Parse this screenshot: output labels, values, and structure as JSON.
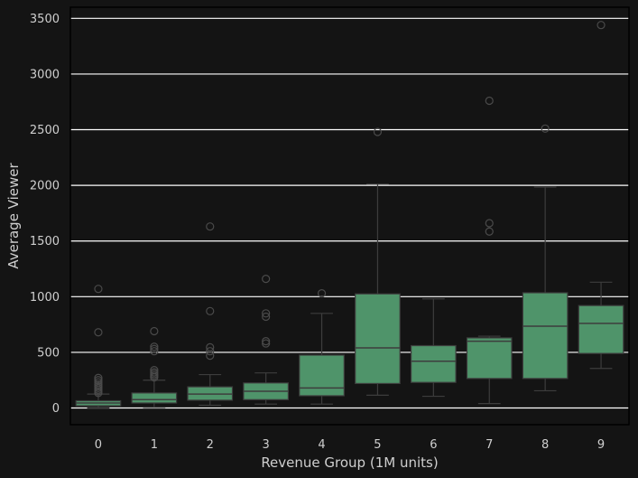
{
  "chart_data": {
    "type": "boxplot",
    "title": "",
    "xlabel": "Revenue Group (1M units)",
    "ylabel": "Average Viewer",
    "ylim": [
      -150,
      3600
    ],
    "yticks": [
      0,
      500,
      1000,
      1500,
      2000,
      2500,
      3000,
      3500
    ],
    "grid": "horizontal",
    "colors": {
      "background": "#141414",
      "box_fill": "#4f946a",
      "box_edge": "#3d3d3d",
      "grid": "#ffffff",
      "spine": "#000000",
      "text": "#cfcfcf"
    },
    "categories": [
      "0",
      "1",
      "2",
      "3",
      "4",
      "5",
      "6",
      "7",
      "8",
      "9"
    ],
    "boxes": [
      {
        "category": "0",
        "whisker_low": 0,
        "q1": 20,
        "median": 45,
        "q3": 65,
        "whisker_high": 125,
        "outliers": [
          1070,
          680,
          270,
          250,
          230,
          210,
          195,
          180,
          165,
          150,
          135
        ]
      },
      {
        "category": "1",
        "whisker_low": 5,
        "q1": 45,
        "median": 75,
        "q3": 135,
        "whisker_high": 250,
        "outliers": [
          690,
          550,
          530,
          510,
          340,
          320,
          305,
          290,
          275
        ]
      },
      {
        "category": "2",
        "whisker_low": 25,
        "q1": 70,
        "median": 125,
        "q3": 190,
        "whisker_high": 300,
        "outliers": [
          1630,
          870,
          545,
          510,
          470
        ]
      },
      {
        "category": "3",
        "whisker_low": 35,
        "q1": 75,
        "median": 150,
        "q3": 225,
        "whisker_high": 315,
        "outliers": [
          1160,
          850,
          820,
          600,
          580
        ]
      },
      {
        "category": "4",
        "whisker_low": 35,
        "q1": 110,
        "median": 180,
        "q3": 475,
        "whisker_high": 850,
        "outliers": [
          1030
        ]
      },
      {
        "category": "5",
        "whisker_low": 115,
        "q1": 220,
        "median": 540,
        "q3": 1025,
        "whisker_high": 2010,
        "outliers": [
          2480
        ]
      },
      {
        "category": "6",
        "whisker_low": 105,
        "q1": 230,
        "median": 420,
        "q3": 560,
        "whisker_high": 980,
        "outliers": []
      },
      {
        "category": "7",
        "whisker_low": 40,
        "q1": 265,
        "median": 600,
        "q3": 630,
        "whisker_high": 645,
        "outliers": [
          2760,
          1660,
          1585
        ]
      },
      {
        "category": "8",
        "whisker_low": 155,
        "q1": 265,
        "median": 735,
        "q3": 1035,
        "whisker_high": 1985,
        "outliers": [
          2510
        ]
      },
      {
        "category": "9",
        "whisker_low": 355,
        "q1": 490,
        "median": 760,
        "q3": 920,
        "whisker_high": 1130,
        "outliers": [
          3440
        ]
      }
    ]
  }
}
